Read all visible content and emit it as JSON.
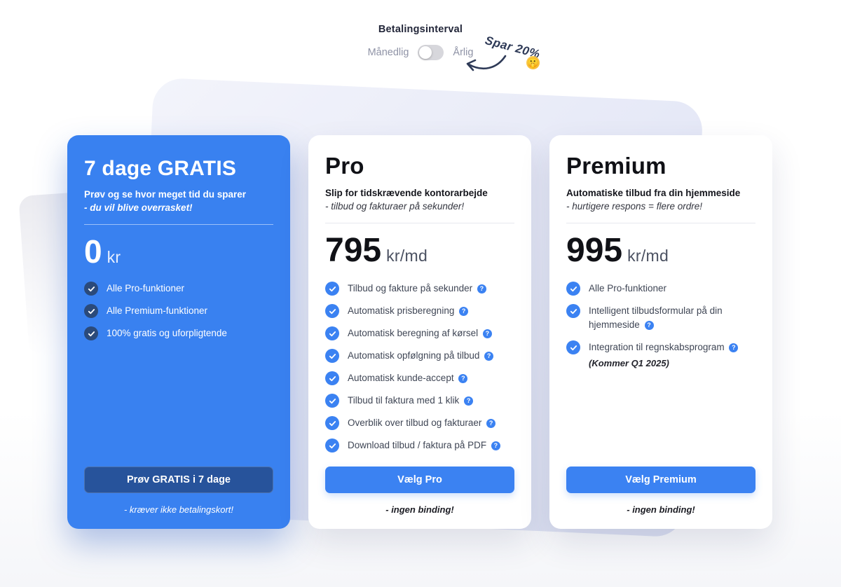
{
  "colors": {
    "accent": "#3b82f2",
    "highlight": "#3981f0",
    "deep_button": "#27539b",
    "check_navy": "#2b4a7a",
    "ink": "#2e3a57"
  },
  "billing": {
    "title": "Betalingsinterval",
    "monthly_label": "Månedlig",
    "yearly_label": "Årlig",
    "toggle_state": "monthly",
    "save_note": "Spar 20%",
    "emoji": "🤫"
  },
  "plans": [
    {
      "name": "7 dage GRATIS",
      "tagline": "Prøv og se hvor meget tid du sparer",
      "tagline_note": "- du vil blive overrasket!",
      "price": "0",
      "price_unit": "kr",
      "highlight": true,
      "features": [
        {
          "label": "Alle Pro-funktioner",
          "help": false
        },
        {
          "label": "Alle Premium-funktioner",
          "help": false
        },
        {
          "label": "100% gratis og uforpligtende",
          "help": false
        }
      ],
      "cta": "Prøv GRATIS i 7 dage",
      "footnote": "- kræver ikke betalingskort!"
    },
    {
      "name": "Pro",
      "tagline": "Slip for tidskrævende kontorarbejde",
      "tagline_note": "- tilbud og fakturaer på sekunder!",
      "price": "795",
      "price_unit": "kr/md",
      "highlight": false,
      "features": [
        {
          "label": "Tilbud og fakture på sekunder",
          "help": true
        },
        {
          "label": "Automatisk prisberegning",
          "help": true
        },
        {
          "label": "Automatisk beregning af kørsel",
          "help": true
        },
        {
          "label": "Automatisk opfølgning på tilbud",
          "help": true
        },
        {
          "label": "Automatisk kunde-accept",
          "help": true
        },
        {
          "label": "Tilbud til faktura med 1 klik",
          "help": true
        },
        {
          "label": "Overblik over tilbud og fakturaer",
          "help": true
        },
        {
          "label": "Download tilbud / faktura på PDF",
          "help": true
        }
      ],
      "cta": "Vælg Pro",
      "footnote": "- ingen binding!"
    },
    {
      "name": "Premium",
      "tagline": "Automatiske tilbud fra din hjemmeside",
      "tagline_note": "- hurtigere respons = flere ordre!",
      "price": "995",
      "price_unit": "kr/md",
      "highlight": false,
      "features": [
        {
          "label": "Alle Pro-funktioner",
          "help": false
        },
        {
          "label": "Intelligent tilbudsformular på din hjemmeside",
          "help": true
        },
        {
          "label": "Integration til regnskabsprogram",
          "help": true,
          "note": "(Kommer Q1 2025)"
        }
      ],
      "cta": "Vælg Premium",
      "footnote": "- ingen binding!"
    }
  ]
}
